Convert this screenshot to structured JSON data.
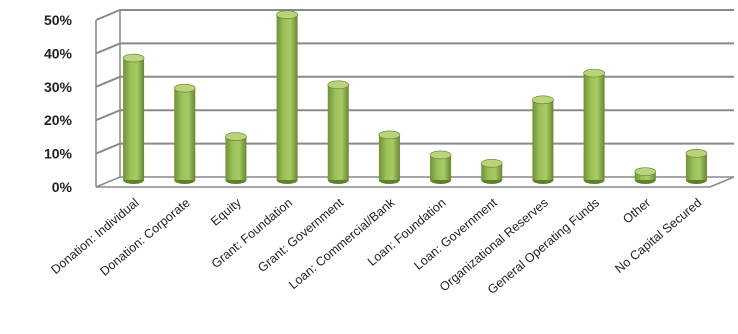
{
  "chart_data": {
    "type": "bar",
    "title": "",
    "xlabel": "",
    "ylabel": "",
    "ylim": [
      0,
      50
    ],
    "yticks": [
      "0%",
      "10%",
      "20%",
      "30%",
      "40%",
      "50%"
    ],
    "grid": true,
    "legend": "none",
    "categories": [
      "Donation: Individual",
      "Donation: Corporate",
      "Equity",
      "Grant: Foundation",
      "Grant: Government",
      "Loan: Commercial/Bank",
      "Loan: Foundation",
      "Loan: Government",
      "Organizational Reserves",
      "General Operating Funds",
      "Other",
      "No Capital Secured"
    ],
    "values": [
      36.5,
      27.5,
      13,
      49.5,
      28.5,
      13.5,
      7.5,
      5,
      24,
      32,
      2.5,
      8
    ],
    "colors": {
      "bar": "#8db04a",
      "bar_dark": "#5f7f2a",
      "bar_light": "#b9d47a",
      "grid": "#8a8a8a"
    }
  }
}
